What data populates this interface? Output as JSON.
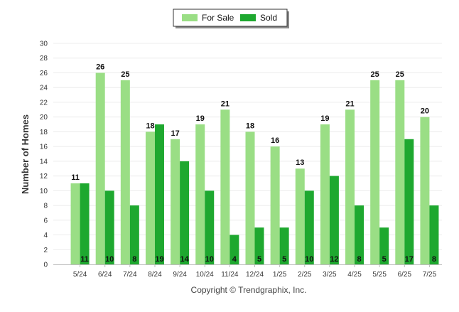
{
  "chart_data": {
    "type": "bar",
    "categories": [
      "5/24",
      "6/24",
      "7/24",
      "8/24",
      "9/24",
      "10/24",
      "11/24",
      "12/24",
      "1/25",
      "2/25",
      "3/25",
      "4/25",
      "5/25",
      "6/25",
      "7/25"
    ],
    "series": [
      {
        "name": "For Sale",
        "color": "#9ade85",
        "values": [
          11,
          26,
          25,
          18,
          17,
          19,
          21,
          18,
          16,
          13,
          19,
          21,
          25,
          25,
          20
        ]
      },
      {
        "name": "Sold",
        "color": "#1ea82f",
        "values": [
          11,
          10,
          8,
          19,
          14,
          10,
          4,
          5,
          5,
          10,
          12,
          8,
          5,
          17,
          8
        ]
      }
    ],
    "ylabel": "Number of Homes",
    "xlabel": "",
    "ylim": [
      0,
      30
    ],
    "yticks": [
      0,
      2,
      4,
      6,
      8,
      10,
      12,
      14,
      16,
      18,
      20,
      22,
      24,
      26,
      28,
      30
    ],
    "legend_position": "top-center",
    "grid": true,
    "footer": "Copyright © Trendgraphix, Inc."
  }
}
